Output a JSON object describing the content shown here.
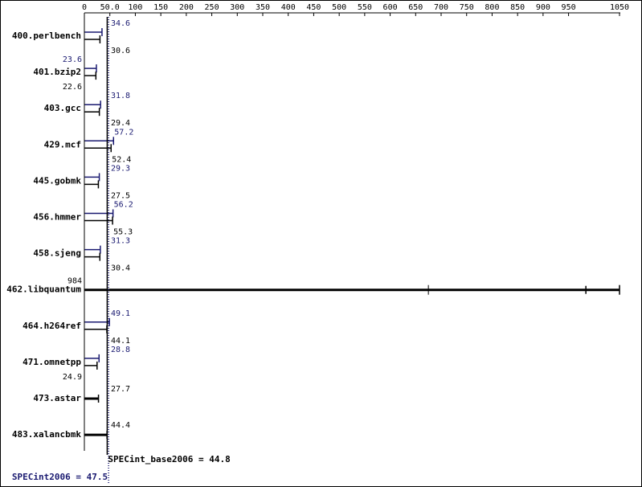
{
  "chart_data": {
    "type": "bar",
    "orientation": "horizontal",
    "x_ticks": [
      "0",
      "50.0",
      "100",
      "150",
      "200",
      "250",
      "300",
      "350",
      "400",
      "450",
      "500",
      "550",
      "600",
      "650",
      "700",
      "750",
      "800",
      "850",
      "900",
      "950",
      "1050"
    ],
    "x_tick_values": [
      0,
      50,
      100,
      150,
      200,
      250,
      300,
      350,
      400,
      450,
      500,
      550,
      600,
      650,
      700,
      750,
      800,
      850,
      900,
      950,
      1050
    ],
    "xlim": [
      0,
      1050
    ],
    "benchmarks": [
      {
        "name": "400.perlbench",
        "peak": 34.6,
        "peak_label": "34.6",
        "base": 30.6,
        "base_label": "30.6"
      },
      {
        "name": "401.bzip2",
        "peak": 23.6,
        "peak_label": "23.6",
        "base": 22.6,
        "base_label": "22.6"
      },
      {
        "name": "403.gcc",
        "peak": 31.8,
        "peak_label": "31.8",
        "base": 29.4,
        "base_label": "29.4"
      },
      {
        "name": "429.mcf",
        "peak": 57.2,
        "peak_label": "57.2",
        "base": 52.4,
        "base_label": "52.4"
      },
      {
        "name": "445.gobmk",
        "peak": 29.3,
        "peak_label": "29.3",
        "base": 27.5,
        "base_label": "27.5"
      },
      {
        "name": "456.hmmer",
        "peak": 56.2,
        "peak_label": "56.2",
        "base": 55.3,
        "base_label": "55.3"
      },
      {
        "name": "458.sjeng",
        "peak": 31.3,
        "peak_label": "31.3",
        "base": 30.4,
        "base_label": "30.4"
      },
      {
        "name": "462.libquantum",
        "peak": null,
        "peak_label": "",
        "base": 984,
        "base_label": "984",
        "combined": true,
        "run_max": 1050,
        "run_mark": 675
      },
      {
        "name": "464.h264ref",
        "peak": 49.1,
        "peak_label": "49.1",
        "base": 44.1,
        "base_label": "44.1"
      },
      {
        "name": "471.omnetpp",
        "peak": 28.8,
        "peak_label": "28.8",
        "base": 24.9,
        "base_label": "24.9"
      },
      {
        "name": "473.astar",
        "peak": null,
        "peak_label": "",
        "base": 27.7,
        "base_label": "27.7",
        "combined": true
      },
      {
        "name": "483.xalancbmk",
        "peak": null,
        "peak_label": "",
        "base": 44.4,
        "base_label": "44.4",
        "combined": true
      }
    ],
    "summary_base": {
      "label": "SPECint_base2006 = 44.8",
      "value": 44.8
    },
    "summary_peak": {
      "label": "SPECint2006 = 47.5",
      "value": 47.5
    },
    "colors": {
      "peak": "#191970",
      "base": "#000000",
      "axis": "#000000"
    }
  }
}
